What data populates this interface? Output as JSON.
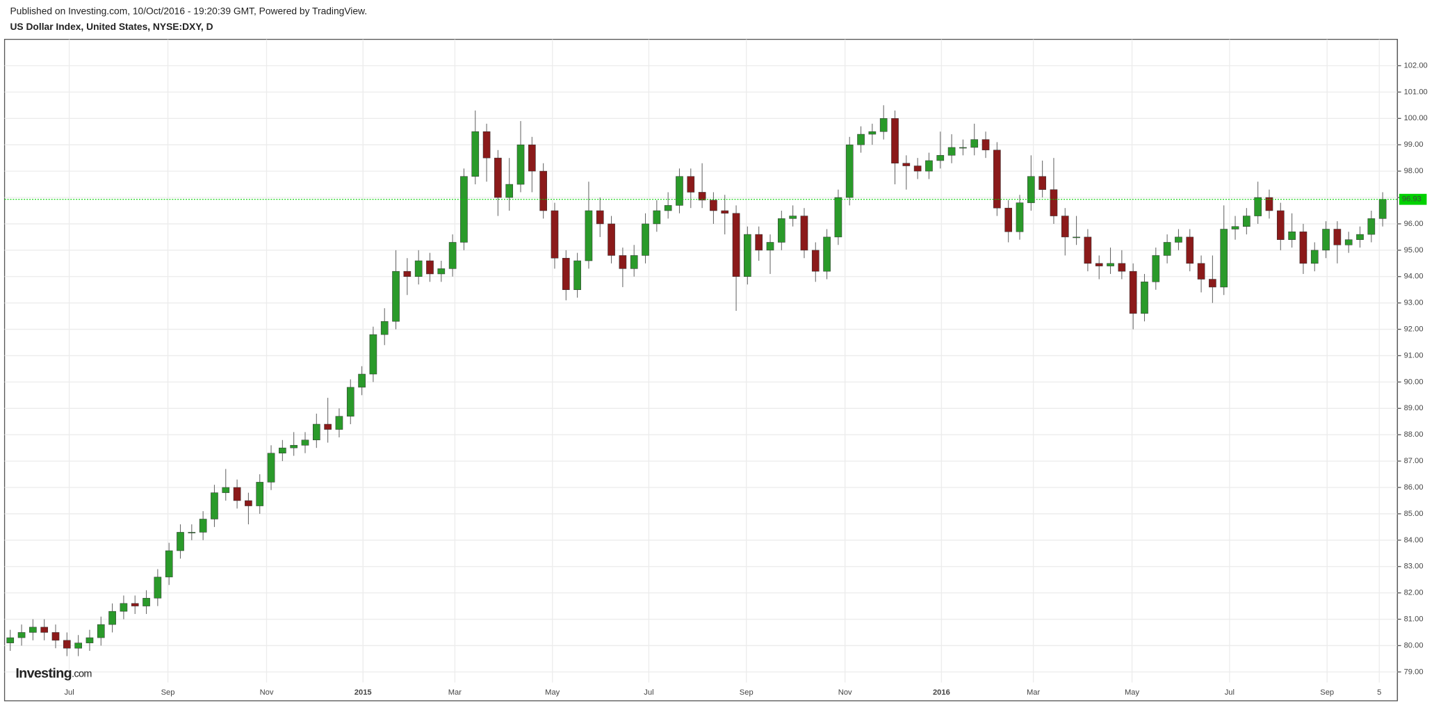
{
  "header": {
    "published": "Published on Investing.com, 10/Oct/2016 - 19:20:39 GMT, Powered by TradingView.",
    "symbol": "US Dollar Index, United States, NYSE:DXY, D"
  },
  "logo": {
    "brand": "Investing",
    "suffix": ".com"
  },
  "chart_data": {
    "type": "candlestick",
    "up_color": "#2a9a2a",
    "down_color": "#8b1a1a",
    "last_color": "#00d100",
    "grid": true,
    "categories": [
      null,
      null,
      null,
      null,
      null,
      null,
      null,
      null,
      null,
      null,
      null,
      null,
      null,
      null,
      null,
      null,
      null,
      null,
      null,
      null,
      null,
      null,
      null,
      null,
      null,
      null,
      null,
      null,
      null,
      null,
      null,
      null,
      null,
      null,
      null,
      null,
      null,
      null,
      null,
      null,
      null,
      null,
      null,
      null,
      null,
      null,
      null,
      null,
      null,
      null,
      null,
      null,
      null,
      null,
      null,
      null,
      null,
      null,
      null,
      null,
      null,
      null,
      null,
      null,
      null,
      null,
      null,
      null,
      null,
      null,
      null,
      null,
      null,
      null,
      null,
      null,
      null,
      null,
      null,
      null,
      null,
      null,
      null,
      null,
      null,
      null,
      null,
      null,
      null,
      null,
      null,
      null,
      null,
      null,
      null,
      null,
      null,
      null,
      null,
      null,
      null,
      null,
      null,
      null,
      null,
      null,
      null,
      null,
      null,
      null,
      null,
      null,
      null,
      null,
      null,
      null,
      null,
      null,
      null,
      null,
      null,
      null
    ],
    "open": [
      80.1,
      80.3,
      80.5,
      80.7,
      80.5,
      80.2,
      79.9,
      80.1,
      80.3,
      80.8,
      81.3,
      81.6,
      81.5,
      81.8,
      82.6,
      83.6,
      84.3,
      84.3,
      84.8,
      85.8,
      86.0,
      85.5,
      85.3,
      86.2,
      87.3,
      87.5,
      87.6,
      87.8,
      88.4,
      88.2,
      88.7,
      89.8,
      90.3,
      91.8,
      92.3,
      94.2,
      94.0,
      94.6,
      94.1,
      94.3,
      95.3,
      97.8,
      99.5,
      98.5,
      97.0,
      97.5,
      99.0,
      98.0,
      96.5,
      94.7,
      93.5,
      94.6,
      96.5,
      96.0,
      94.8,
      94.3,
      94.8,
      96.0,
      96.5,
      96.7,
      97.8,
      97.2,
      96.9,
      96.5,
      96.4,
      94.0,
      95.6,
      95.0,
      95.3,
      96.2,
      96.3,
      95.0,
      94.2,
      95.5,
      97.0,
      99.0,
      99.4,
      99.5,
      100.0,
      98.3,
      98.2,
      98.0,
      98.4,
      98.6,
      98.9,
      98.9,
      99.2,
      98.8,
      96.6,
      95.7,
      96.8,
      97.8,
      97.3,
      96.3,
      95.5,
      95.5,
      94.5,
      94.4,
      94.5,
      94.2,
      92.6,
      93.8,
      94.8,
      95.3,
      95.5,
      94.5,
      93.9,
      93.6,
      95.8,
      95.9,
      96.3,
      97.0,
      96.5,
      95.4,
      95.7,
      94.5,
      95.0,
      95.8,
      95.2,
      95.4,
      95.6,
      96.2
    ],
    "high": [
      80.6,
      80.8,
      81.0,
      81.0,
      80.8,
      80.5,
      80.4,
      80.6,
      81.1,
      81.6,
      81.9,
      81.9,
      82.1,
      82.9,
      83.9,
      84.6,
      84.6,
      85.1,
      86.1,
      86.7,
      86.3,
      85.8,
      86.5,
      87.6,
      87.8,
      88.1,
      88.1,
      88.8,
      89.4,
      89.0,
      90.1,
      90.6,
      92.1,
      92.8,
      95.0,
      94.7,
      95.0,
      94.9,
      94.6,
      95.6,
      98.1,
      100.3,
      99.8,
      98.8,
      98.5,
      99.9,
      99.3,
      98.3,
      96.8,
      95.0,
      94.9,
      97.6,
      97.0,
      96.3,
      95.1,
      95.2,
      96.4,
      96.9,
      97.2,
      98.1,
      98.1,
      98.3,
      97.2,
      97.1,
      96.7,
      95.9,
      95.9,
      95.6,
      96.5,
      96.7,
      96.6,
      95.3,
      95.8,
      97.3,
      99.3,
      99.7,
      99.8,
      100.5,
      100.3,
      98.6,
      98.5,
      98.7,
      99.5,
      99.4,
      99.2,
      99.8,
      99.5,
      99.1,
      96.9,
      97.1,
      98.6,
      98.4,
      98.5,
      96.6,
      96.3,
      95.8,
      94.8,
      95.1,
      95.0,
      94.5,
      94.1,
      95.1,
      95.6,
      95.8,
      95.8,
      94.8,
      94.8,
      96.7,
      96.3,
      96.6,
      97.6,
      97.3,
      96.8,
      96.4,
      96.0,
      95.3,
      96.1,
      96.1,
      95.7,
      95.9,
      96.5,
      97.2
    ],
    "low": [
      79.8,
      80.0,
      80.2,
      80.2,
      79.9,
      79.6,
      79.6,
      79.8,
      80.0,
      80.5,
      81.0,
      81.2,
      81.2,
      81.5,
      82.3,
      83.3,
      84.0,
      84.0,
      84.5,
      85.5,
      85.2,
      84.6,
      85.0,
      85.9,
      87.0,
      87.2,
      87.3,
      87.5,
      87.7,
      87.9,
      88.4,
      89.5,
      90.0,
      91.4,
      92.0,
      93.3,
      93.7,
      93.8,
      93.8,
      94.0,
      95.0,
      97.5,
      97.6,
      96.3,
      96.5,
      97.2,
      97.2,
      96.2,
      94.3,
      93.1,
      93.2,
      94.3,
      95.5,
      94.5,
      93.6,
      94.0,
      94.5,
      95.7,
      96.2,
      96.4,
      96.6,
      96.6,
      96.0,
      95.6,
      92.7,
      93.7,
      94.6,
      94.1,
      95.0,
      95.9,
      94.7,
      93.8,
      93.9,
      95.2,
      96.7,
      98.7,
      99.0,
      99.2,
      97.5,
      97.3,
      97.7,
      97.7,
      98.1,
      98.3,
      98.6,
      98.6,
      98.5,
      96.3,
      95.3,
      95.4,
      96.5,
      97.0,
      96.0,
      94.8,
      95.2,
      94.2,
      93.9,
      94.1,
      93.9,
      92.0,
      92.3,
      93.5,
      94.5,
      95.0,
      94.2,
      93.4,
      93.0,
      93.3,
      95.4,
      95.6,
      96.0,
      96.2,
      95.0,
      95.1,
      94.1,
      94.2,
      94.7,
      94.5,
      94.9,
      95.1,
      95.3,
      95.9
    ],
    "close": [
      80.3,
      80.5,
      80.7,
      80.5,
      80.2,
      79.9,
      80.1,
      80.3,
      80.8,
      81.3,
      81.6,
      81.5,
      81.8,
      82.6,
      83.6,
      84.3,
      84.3,
      84.8,
      85.8,
      86.0,
      85.5,
      85.3,
      86.2,
      87.3,
      87.5,
      87.6,
      87.8,
      88.4,
      88.2,
      88.7,
      89.8,
      90.3,
      91.8,
      92.3,
      94.2,
      94.0,
      94.6,
      94.1,
      94.3,
      95.3,
      97.8,
      99.5,
      98.5,
      97.0,
      97.5,
      99.0,
      98.0,
      96.5,
      94.7,
      93.5,
      94.6,
      96.5,
      96.0,
      94.8,
      94.3,
      94.8,
      96.0,
      96.5,
      96.7,
      97.8,
      97.2,
      96.9,
      96.5,
      96.4,
      94.0,
      95.6,
      95.0,
      95.3,
      96.2,
      96.3,
      95.0,
      94.2,
      95.5,
      97.0,
      99.0,
      99.4,
      99.5,
      100.0,
      98.3,
      98.2,
      98.0,
      98.4,
      98.6,
      98.9,
      98.9,
      99.2,
      98.8,
      96.6,
      95.7,
      96.8,
      97.8,
      97.3,
      96.3,
      95.5,
      95.5,
      94.5,
      94.4,
      94.5,
      94.2,
      92.6,
      93.8,
      94.8,
      95.3,
      95.5,
      94.5,
      93.9,
      93.6,
      95.8,
      95.9,
      96.3,
      97.0,
      96.5,
      95.4,
      95.7,
      94.5,
      95.0,
      95.8,
      95.2,
      95.4,
      95.6,
      96.2,
      96.93
    ],
    "xlim": [
      -0.5,
      122.3
    ],
    "xticks": [
      {
        "value": 5.2,
        "label": "Jul"
      },
      {
        "value": 13.9,
        "label": "Sep"
      },
      {
        "value": 22.6,
        "label": "Nov"
      },
      {
        "value": 31.1,
        "label": "2015"
      },
      {
        "value": 39.2,
        "label": "Mar"
      },
      {
        "value": 47.8,
        "label": "May"
      },
      {
        "value": 56.3,
        "label": "Jul"
      },
      {
        "value": 64.9,
        "label": "Sep"
      },
      {
        "value": 73.6,
        "label": "Nov"
      },
      {
        "value": 82.1,
        "label": "2016"
      },
      {
        "value": 90.2,
        "label": "Mar"
      },
      {
        "value": 98.9,
        "label": "May"
      },
      {
        "value": 107.5,
        "label": "Jul"
      },
      {
        "value": 116.1,
        "label": "Sep"
      },
      {
        "value": 120.7,
        "label": "5"
      }
    ],
    "ylim": [
      78.6,
      103.0
    ],
    "yticks": [
      {
        "value": 79,
        "label": "79.00"
      },
      {
        "value": 80,
        "label": "80.00"
      },
      {
        "value": 81,
        "label": "81.00"
      },
      {
        "value": 82,
        "label": "82.00"
      },
      {
        "value": 83,
        "label": "83.00"
      },
      {
        "value": 84,
        "label": "84.00"
      },
      {
        "value": 85,
        "label": "85.00"
      },
      {
        "value": 86,
        "label": "86.00"
      },
      {
        "value": 87,
        "label": "87.00"
      },
      {
        "value": 88,
        "label": "88.00"
      },
      {
        "value": 89,
        "label": "89.00"
      },
      {
        "value": 90,
        "label": "90.00"
      },
      {
        "value": 91,
        "label": "91.00"
      },
      {
        "value": 92,
        "label": "92.00"
      },
      {
        "value": 93,
        "label": "93.00"
      },
      {
        "value": 94,
        "label": "94.00"
      },
      {
        "value": 95,
        "label": "95.00"
      },
      {
        "value": 96,
        "label": "96.00"
      },
      {
        "value": 97,
        "label": "97.00"
      },
      {
        "value": 98,
        "label": "98.00"
      },
      {
        "value": 99,
        "label": "99.00"
      },
      {
        "value": 100,
        "label": "100.00"
      },
      {
        "value": 101,
        "label": "101.00"
      },
      {
        "value": 102,
        "label": "102.00"
      }
    ]
  }
}
